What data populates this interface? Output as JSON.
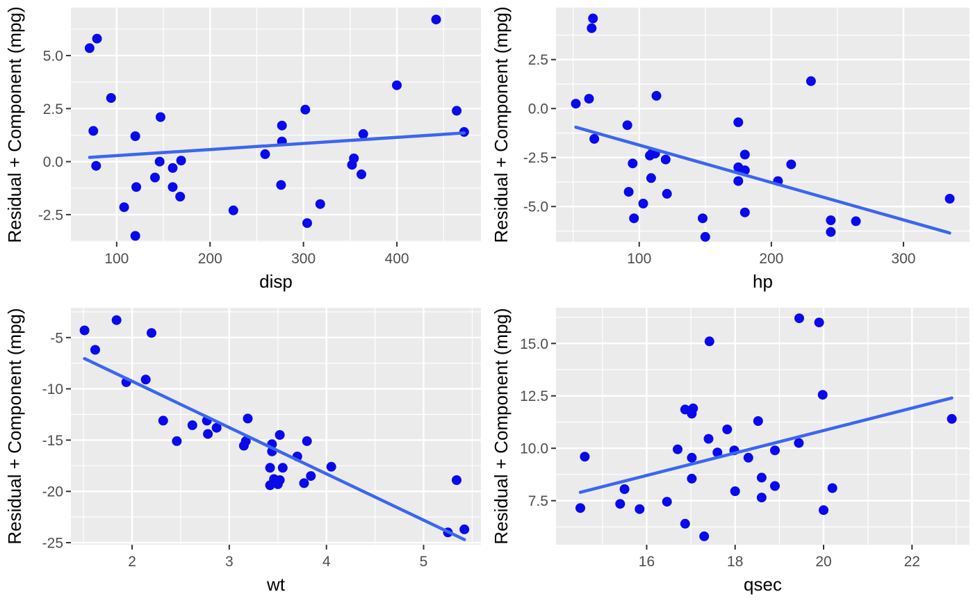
{
  "figure": {
    "description": "Component + residual plots, 2x2 grid",
    "shared_ylabel": "Residual + Component (mpg)"
  },
  "style": {
    "panel_bg": "#EBEBEB",
    "grid_color": "#FFFFFF",
    "point_color": "#0909EB",
    "line_color": "#3B66F0",
    "tick_label_color": "#4D4D4D",
    "tick_mark_color": "#333333",
    "axis_title_color": "#000000"
  },
  "chart_data": [
    {
      "id": "disp",
      "type": "scatter",
      "xlabel": "disp",
      "ylabel": "Residual + Component (mpg)",
      "xlim": [
        51,
        490
      ],
      "ylim": [
        -3.78,
        7.26
      ],
      "x_tick_values": [
        100,
        200,
        300,
        400
      ],
      "x_tick_labels": [
        "100",
        "200",
        "300",
        "400"
      ],
      "y_tick_values": [
        -2.5,
        0.0,
        2.5,
        5.0
      ],
      "y_tick_labels": [
        "-2.5",
        "0.0",
        "2.5",
        "5.0"
      ],
      "grid": "major+minor",
      "legend": "none",
      "points": [
        [
          71,
          5.35
        ],
        [
          79,
          5.8
        ],
        [
          94,
          3.0
        ],
        [
          442,
          6.7
        ],
        [
          400,
          3.6
        ],
        [
          302,
          2.45
        ],
        [
          464,
          2.4
        ],
        [
          147,
          2.1
        ],
        [
          277,
          1.7
        ],
        [
          75,
          1.45
        ],
        [
          364,
          1.3
        ],
        [
          472,
          1.4
        ],
        [
          120,
          1.2
        ],
        [
          277,
          0.95
        ],
        [
          259,
          0.35
        ],
        [
          169,
          0.05
        ],
        [
          146,
          0.0
        ],
        [
          354,
          0.15
        ],
        [
          78,
          -0.2
        ],
        [
          352,
          -0.15
        ],
        [
          160,
          -0.3
        ],
        [
          362,
          -0.6
        ],
        [
          141,
          -0.75
        ],
        [
          121,
          -1.2
        ],
        [
          160,
          -1.2
        ],
        [
          276,
          -1.1
        ],
        [
          168,
          -1.65
        ],
        [
          318,
          -2.0
        ],
        [
          108,
          -2.15
        ],
        [
          225,
          -2.3
        ],
        [
          304,
          -2.9
        ],
        [
          120,
          -3.5
        ]
      ],
      "trend_line": [
        [
          71,
          0.2
        ],
        [
          472,
          1.35
        ]
      ]
    },
    {
      "id": "hp",
      "type": "scatter",
      "xlabel": "hp",
      "ylabel": "Residual + Component (mpg)",
      "xlim": [
        37,
        350
      ],
      "ylim": [
        -6.8,
        5.15
      ],
      "x_tick_values": [
        100,
        200,
        300
      ],
      "x_tick_labels": [
        "100",
        "200",
        "300"
      ],
      "y_tick_values": [
        -5.0,
        -2.5,
        0.0,
        2.5
      ],
      "y_tick_labels": [
        "-5.0",
        "-2.5",
        "0.0",
        "2.5"
      ],
      "grid": "major+minor",
      "legend": "none",
      "points": [
        [
          65,
          4.6
        ],
        [
          64,
          4.1
        ],
        [
          230,
          1.4
        ],
        [
          113,
          0.65
        ],
        [
          62,
          0.5
        ],
        [
          52,
          0.25
        ],
        [
          91,
          -0.85
        ],
        [
          175,
          -0.7
        ],
        [
          66,
          -1.55
        ],
        [
          110,
          -2.25
        ],
        [
          112,
          -2.3
        ],
        [
          108,
          -2.4
        ],
        [
          180,
          -2.35
        ],
        [
          120,
          -2.6
        ],
        [
          95,
          -2.8
        ],
        [
          215,
          -2.85
        ],
        [
          175,
          -3.0
        ],
        [
          180,
          -3.15
        ],
        [
          109,
          -3.55
        ],
        [
          175,
          -3.7
        ],
        [
          205,
          -3.7
        ],
        [
          92,
          -4.25
        ],
        [
          121,
          -4.35
        ],
        [
          335,
          -4.6
        ],
        [
          103,
          -4.85
        ],
        [
          180,
          -5.3
        ],
        [
          96,
          -5.6
        ],
        [
          148,
          -5.6
        ],
        [
          245,
          -5.7
        ],
        [
          264,
          -5.75
        ],
        [
          245,
          -6.3
        ],
        [
          150,
          -6.55
        ]
      ],
      "trend_line": [
        [
          52,
          -0.95
        ],
        [
          335,
          -6.35
        ]
      ]
    },
    {
      "id": "wt",
      "type": "scatter",
      "xlabel": "wt",
      "ylabel": "Residual + Component (mpg)",
      "xlim": [
        1.37,
        5.59
      ],
      "ylim": [
        -25.2,
        -2.1
      ],
      "x_tick_values": [
        2,
        3,
        4,
        5
      ],
      "x_tick_labels": [
        "2",
        "3",
        "4",
        "5"
      ],
      "y_tick_values": [
        -25,
        -20,
        -15,
        -10,
        -5
      ],
      "y_tick_labels": [
        "-25",
        "-20",
        "-15",
        "-10",
        "-5"
      ],
      "grid": "major+minor",
      "legend": "none",
      "points": [
        [
          1.84,
          -3.3
        ],
        [
          1.51,
          -4.3
        ],
        [
          2.2,
          -4.55
        ],
        [
          1.62,
          -6.2
        ],
        [
          1.94,
          -9.35
        ],
        [
          2.14,
          -9.1
        ],
        [
          2.32,
          -13.1
        ],
        [
          2.62,
          -13.55
        ],
        [
          2.77,
          -13.1
        ],
        [
          2.87,
          -13.8
        ],
        [
          2.78,
          -14.4
        ],
        [
          2.46,
          -15.1
        ],
        [
          3.19,
          -12.9
        ],
        [
          3.17,
          -15.1
        ],
        [
          3.15,
          -15.55
        ],
        [
          3.44,
          -15.4
        ],
        [
          3.52,
          -14.5
        ],
        [
          3.44,
          -16.1
        ],
        [
          3.7,
          -16.6
        ],
        [
          3.8,
          -15.1
        ],
        [
          3.42,
          -17.7
        ],
        [
          3.55,
          -17.7
        ],
        [
          4.05,
          -17.6
        ],
        [
          3.84,
          -18.5
        ],
        [
          3.46,
          -18.8
        ],
        [
          3.52,
          -18.9
        ],
        [
          3.42,
          -19.4
        ],
        [
          3.5,
          -19.3
        ],
        [
          3.77,
          -19.2
        ],
        [
          5.34,
          -18.9
        ],
        [
          5.25,
          -24.0
        ],
        [
          5.42,
          -23.7
        ]
      ],
      "trend_line": [
        [
          1.51,
          -7.05
        ],
        [
          5.42,
          -24.7
        ]
      ]
    },
    {
      "id": "qsec",
      "type": "scatter",
      "xlabel": "qsec",
      "ylabel": "Residual + Component (mpg)",
      "xlim": [
        13.95,
        23.3
      ],
      "ylim": [
        5.4,
        16.7
      ],
      "x_tick_values": [
        16,
        18,
        20,
        22
      ],
      "x_tick_labels": [
        "16",
        "18",
        "20",
        "22"
      ],
      "y_tick_values": [
        7.5,
        10.0,
        12.5,
        15.0
      ],
      "y_tick_labels": [
        "7.5",
        "10.0",
        "12.5",
        "15.0"
      ],
      "grid": "major+minor",
      "legend": "none",
      "points": [
        [
          19.45,
          16.2
        ],
        [
          19.9,
          16.0
        ],
        [
          17.42,
          15.1
        ],
        [
          19.98,
          12.55
        ],
        [
          16.87,
          11.85
        ],
        [
          17.05,
          11.9
        ],
        [
          17.02,
          11.65
        ],
        [
          18.52,
          11.3
        ],
        [
          22.9,
          11.4
        ],
        [
          17.82,
          10.9
        ],
        [
          17.4,
          10.45
        ],
        [
          19.44,
          10.25
        ],
        [
          16.7,
          9.95
        ],
        [
          17.6,
          9.8
        ],
        [
          17.98,
          9.9
        ],
        [
          18.9,
          9.9
        ],
        [
          17.02,
          9.55
        ],
        [
          18.3,
          9.55
        ],
        [
          14.6,
          9.6
        ],
        [
          17.02,
          8.55
        ],
        [
          18.6,
          8.6
        ],
        [
          18.9,
          8.2
        ],
        [
          15.5,
          8.05
        ],
        [
          20.2,
          8.1
        ],
        [
          18.0,
          7.95
        ],
        [
          18.6,
          7.65
        ],
        [
          16.46,
          7.45
        ],
        [
          15.4,
          7.35
        ],
        [
          14.5,
          7.15
        ],
        [
          15.84,
          7.1
        ],
        [
          20.0,
          7.05
        ],
        [
          16.87,
          6.4
        ],
        [
          17.3,
          5.8
        ]
      ],
      "trend_line": [
        [
          14.5,
          7.9
        ],
        [
          22.9,
          12.4
        ]
      ]
    }
  ]
}
